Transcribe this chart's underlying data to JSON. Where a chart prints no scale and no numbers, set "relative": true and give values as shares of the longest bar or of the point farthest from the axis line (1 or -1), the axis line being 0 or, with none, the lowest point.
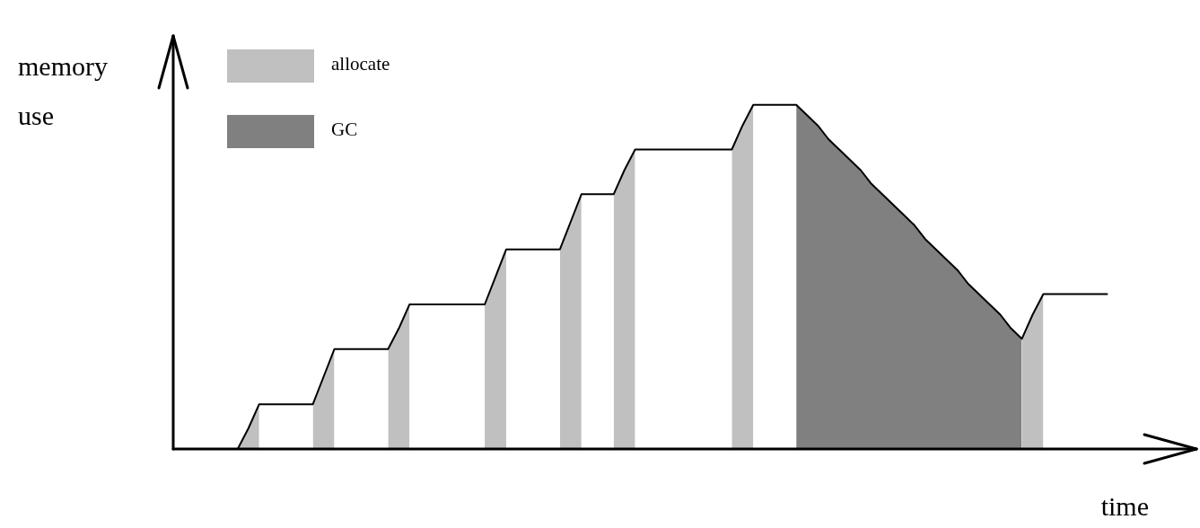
{
  "chart_data": {
    "type": "line",
    "xlabel": "time",
    "ylabel": "memory use",
    "relative": true,
    "legend": "top left",
    "marker": "none",
    "categories": [
      null,
      null,
      null,
      null,
      null,
      null,
      null,
      null,
      null,
      null,
      null,
      null,
      null,
      null,
      null,
      null,
      null,
      null,
      null,
      null,
      null,
      null,
      null,
      null,
      null,
      null,
      null,
      null,
      null,
      null,
      null,
      null,
      null,
      null,
      null,
      null,
      null,
      null,
      null,
      null,
      null,
      null,
      null,
      null,
      null,
      null,
      null,
      null,
      null,
      null,
      null,
      null,
      null,
      null,
      null,
      null,
      null,
      null,
      null,
      null,
      null,
      null,
      null,
      null,
      null,
      null,
      null,
      null,
      null,
      null,
      null,
      null,
      null,
      null,
      null,
      null,
      null,
      null,
      null,
      null,
      null,
      null,
      null,
      null,
      null,
      null,
      null,
      null,
      null,
      null,
      null,
      null,
      null,
      null,
      null,
      null
    ],
    "series": [
      {
        "type": "line",
        "color": "#000000",
        "values": [
          null,
          null,
          null,
          null,
          null,
          null,
          0,
          0.06,
          0.13,
          0.13,
          0.13,
          0.13,
          0.13,
          0.13,
          0.21,
          0.29,
          0.29,
          0.29,
          0.29,
          0.29,
          0.29,
          0.35,
          0.42,
          0.42,
          0.42,
          0.42,
          0.42,
          0.42,
          0.42,
          0.42,
          0.5,
          0.58,
          0.58,
          0.58,
          0.58,
          0.58,
          0.58,
          0.66,
          0.74,
          0.74,
          0.74,
          0.74,
          0.81,
          0.87,
          0.87,
          0.87,
          0.87,
          0.87,
          0.87,
          0.87,
          0.87,
          0.87,
          0.87,
          0.94,
          1,
          1,
          1,
          1,
          1,
          0.97,
          0.94,
          0.9,
          0.87,
          0.84,
          0.81,
          0.77,
          0.74,
          0.71,
          0.68,
          0.65,
          0.61,
          0.58,
          0.55,
          0.52,
          0.48,
          0.45,
          0.42,
          0.39,
          0.35,
          0.32,
          0.39,
          0.45,
          0.45,
          0.45,
          0.45,
          0.45,
          0.45,
          0.45,
          null,
          null,
          null,
          null,
          null,
          null,
          null,
          null
        ]
      },
      {
        "type": "area",
        "name": "allocate",
        "color": "#c0c0c0",
        "values": [
          null,
          null,
          null,
          null,
          null,
          null,
          0,
          0.06,
          0.13,
          null,
          null,
          null,
          null,
          0.13,
          0.21,
          0.29,
          null,
          null,
          null,
          null,
          0.29,
          0.35,
          0.42,
          null,
          null,
          null,
          null,
          null,
          null,
          0.42,
          0.5,
          0.58,
          null,
          null,
          null,
          null,
          0.58,
          0.66,
          0.74,
          null,
          null,
          0.74,
          0.81,
          0.87,
          null,
          null,
          null,
          null,
          null,
          null,
          null,
          null,
          0.87,
          0.94,
          1,
          null,
          null,
          null,
          null,
          null,
          null,
          null,
          null,
          null,
          null,
          null,
          null,
          null,
          null,
          null,
          null,
          null,
          null,
          null,
          null,
          null,
          null,
          null,
          null,
          0.32,
          0.39,
          0.45,
          null,
          null,
          null,
          null,
          null,
          null,
          null,
          null,
          null,
          null,
          null,
          null,
          null,
          null
        ]
      },
      {
        "type": "area",
        "name": "GC",
        "color": "#808080",
        "values": [
          null,
          null,
          null,
          null,
          null,
          null,
          null,
          null,
          null,
          null,
          null,
          null,
          null,
          null,
          null,
          null,
          null,
          null,
          null,
          null,
          null,
          null,
          null,
          null,
          null,
          null,
          null,
          null,
          null,
          null,
          null,
          null,
          null,
          null,
          null,
          null,
          null,
          null,
          null,
          null,
          null,
          null,
          null,
          null,
          null,
          null,
          null,
          null,
          null,
          null,
          null,
          null,
          null,
          null,
          null,
          null,
          null,
          null,
          1,
          0.97,
          0.94,
          0.9,
          0.87,
          0.84,
          0.81,
          0.77,
          0.74,
          0.71,
          0.68,
          0.65,
          0.61,
          0.58,
          0.55,
          0.52,
          0.48,
          0.45,
          0.42,
          0.39,
          0.35,
          0.32,
          null,
          null,
          null,
          null,
          null,
          null,
          null,
          null,
          null,
          null,
          null,
          null,
          null,
          null,
          null,
          null
        ]
      }
    ]
  }
}
